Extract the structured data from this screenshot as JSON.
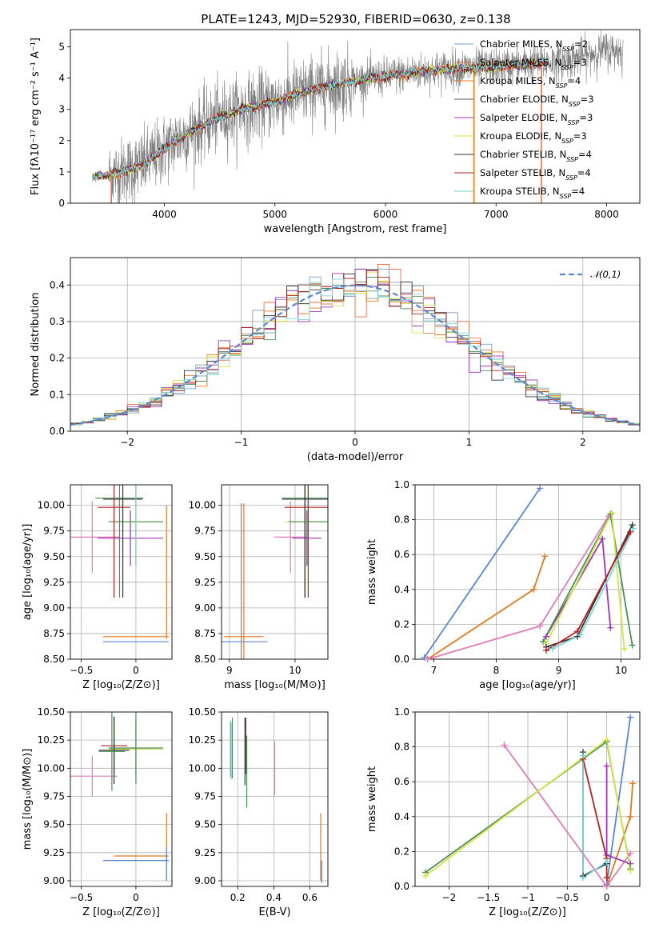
{
  "figure": {
    "title": "PLATE=1243, MJD=52930, FIBERID=0630, z=0.138"
  },
  "colors": {
    "observed": "#808080",
    "Chabrier MILES": "#7f9fc6",
    "Salpeter MILES": "#e8744d",
    "Kroupa MILES": "#e07b20",
    "Chabrier ELODIE": "#555555",
    "Salpeter ELODIE": "#9c35b8",
    "Kroupa ELODIE": "#d4e645",
    "Chabrier STELIB": "#333333",
    "Salpeter STELIB": "#b22222",
    "Kroupa STELIB": "#7fd6d6",
    "blue": "#5b86d6",
    "orange": "#e07b20",
    "pink": "#e07bb8",
    "purple": "#9c35b8",
    "green": "#4a8f5e",
    "lime": "#c8e64a",
    "darkred": "#8b1a1a",
    "darkgrey": "#444444",
    "cyan": "#7fd6d6",
    "normal_dashed": "#5b86d6"
  },
  "chart_data": [
    {
      "id": "spectrum",
      "type": "line",
      "title": "PLATE=1243, MJD=52930, FIBERID=0630, z=0.138",
      "xlabel": "wavelength [Angstrom, rest frame]",
      "ylabel": "Flux [fλ10⁻¹⁷ erg cm⁻² s⁻¹ A⁻¹]",
      "xlim": [
        3150,
        8300
      ],
      "ylim": [
        0,
        5.55
      ],
      "xticks": [
        4000,
        5000,
        6000,
        7000,
        8000
      ],
      "yticks": [
        0,
        1,
        2,
        3,
        4,
        5
      ],
      "grid": false,
      "legend_position": "top-right",
      "legend": [
        "Chabrier MILES, N_SSP=2",
        "Salpeter MILES, N_SSP=3",
        "Kroupa MILES, N_SSP=4",
        "Chabrier ELODIE, N_SSP=3",
        "Salpeter ELODIE, N_SSP=3",
        "Kroupa ELODIE, N_SSP=3",
        "Chabrier STELIB, N_SSP=4",
        "Salpeter STELIB, N_SSP=4",
        "Kroupa STELIB, N_SSP=4"
      ],
      "legend_display": [
        [
          "Chabrier MILES, N",
          "SSP",
          "=2"
        ],
        [
          "Salpeter MILES, N",
          "SSP",
          "=3"
        ],
        [
          "Kroupa MILES, N",
          "SSP",
          "=4"
        ],
        [
          "Chabrier ELODIE, N",
          "SSP",
          "=3"
        ],
        [
          "Salpeter ELODIE, N",
          "SSP",
          "=3"
        ],
        [
          "Kroupa ELODIE, N",
          "SSP",
          "=3"
        ],
        [
          "Chabrier STELIB, N",
          "SSP",
          "=4"
        ],
        [
          "Salpeter STELIB, N",
          "SSP",
          "=4"
        ],
        [
          "Kroupa STELIB, N",
          "SSP",
          "=4"
        ]
      ],
      "continuum": [
        [
          3350,
          0.85
        ],
        [
          3500,
          0.9
        ],
        [
          3650,
          1.05
        ],
        [
          3800,
          1.2
        ],
        [
          3950,
          1.6
        ],
        [
          4100,
          2.0
        ],
        [
          4300,
          2.4
        ],
        [
          4500,
          2.75
        ],
        [
          4700,
          3.0
        ],
        [
          4900,
          3.15
        ],
        [
          5100,
          3.35
        ],
        [
          5300,
          3.6
        ],
        [
          5500,
          3.75
        ],
        [
          5700,
          3.9
        ],
        [
          6000,
          4.05
        ],
        [
          6300,
          4.2
        ],
        [
          6600,
          4.3
        ],
        [
          7000,
          4.35
        ],
        [
          7300,
          4.45
        ],
        [
          7600,
          4.55
        ],
        [
          7800,
          4.7
        ],
        [
          8000,
          4.9
        ],
        [
          8150,
          4.85
        ]
      ],
      "observed_range": [
        3500,
        8150
      ],
      "models_range": [
        3350,
        7450
      ],
      "spikes": [
        {
          "x": 3520,
          "series": "Salpeter MILES"
        },
        {
          "x": 6800,
          "series": "Kroupa MILES"
        },
        {
          "x": 7410,
          "series": "Salpeter MILES"
        }
      ]
    },
    {
      "id": "residuals",
      "type": "histogram",
      "xlabel": "(data-model)/error",
      "ylabel": "Normed distribution",
      "xlim": [
        -2.5,
        2.5
      ],
      "ylim": [
        0,
        0.475
      ],
      "xticks": [
        -2,
        -1,
        0,
        1,
        2
      ],
      "yticks": [
        0.0,
        0.1,
        0.2,
        0.3,
        0.4
      ],
      "grid": true,
      "legend_position": "top-right",
      "legend": [
        "𝒩(0,1)"
      ],
      "bins": [
        -2.5,
        2.5,
        50
      ],
      "series_colors": [
        "#7f9fc6",
        "#e8744d",
        "#e07b20",
        "#4a8f5e",
        "#9c35b8",
        "#d4e645",
        "#333333",
        "#b22222",
        "#7fd6d6"
      ]
    },
    {
      "id": "age-vs-Z",
      "type": "errorbar",
      "xlabel": "Z [log₁₀(Z/Z⊙)]",
      "ylabel": "age  [log₁₀(age/yr)]",
      "xlim": [
        -0.6,
        0.33
      ],
      "ylim": [
        8.5,
        10.2
      ],
      "xticks": [
        -0.5,
        0.0
      ],
      "yticks": [
        8.5,
        8.75,
        9.0,
        9.25,
        9.5,
        9.75,
        10.0
      ],
      "grid": true,
      "points": [
        {
          "x": 0.0,
          "xerr": 0.3,
          "y": 8.67,
          "yerr": 0.0,
          "color": "#5b86d6"
        },
        {
          "x": 0.0,
          "xerr": 0.3,
          "y": 8.72,
          "yerr": 0.0,
          "color": "#e07b20"
        },
        {
          "x": 0.28,
          "xerr": 0.0,
          "y": 9.35,
          "yerr": 0.65,
          "color": "#e07b20"
        },
        {
          "x": -0.4,
          "xerr": 0.25,
          "y": 9.69,
          "yerr": 0.35,
          "color": "#e07bb8"
        },
        {
          "x": -0.05,
          "xerr": 0.3,
          "y": 9.68,
          "yerr": 0.27,
          "color": "#9c35b8"
        },
        {
          "x": 0.0,
          "xerr": 0.25,
          "y": 9.84,
          "yerr": 0.42,
          "color": "#d4e645"
        },
        {
          "x": 0.0,
          "xerr": 0.25,
          "y": 9.84,
          "yerr": 0.42,
          "color": "#4a8f5e"
        },
        {
          "x": -0.2,
          "xerr": 0.15,
          "y": 9.98,
          "yerr": 0.88,
          "color": "#b22222"
        },
        {
          "x": -0.15,
          "xerr": 0.22,
          "y": 10.07,
          "yerr": 0.97,
          "color": "#4a8f5e"
        },
        {
          "x": -0.12,
          "xerr": 0.18,
          "y": 10.06,
          "yerr": 0.96,
          "color": "#333333"
        },
        {
          "x": 0.0,
          "xerr": 0.0,
          "y": 10.0,
          "yerr": 0.6,
          "color": "#7fd6d6"
        }
      ]
    },
    {
      "id": "age-vs-mass",
      "type": "errorbar",
      "xlabel": "mass [log₁₀(M/M⊙)]",
      "ylabel": "",
      "xlim": [
        8.88,
        10.5
      ],
      "ylim": [
        8.5,
        10.2
      ],
      "xticks": [
        9,
        10
      ],
      "yticks": [
        8.5,
        8.75,
        9.0,
        9.25,
        9.5,
        9.75,
        10.0
      ],
      "grid": true,
      "points": [
        {
          "x": 9.18,
          "xerr": 0.4,
          "y": 8.67,
          "yerr": 1.35,
          "color": "#5b86d6"
        },
        {
          "x": 9.22,
          "xerr": 0.3,
          "y": 8.72,
          "yerr": 1.3,
          "color": "#e07b20"
        },
        {
          "x": 9.93,
          "xerr": 0.25,
          "y": 9.69,
          "yerr": 0.35,
          "color": "#e07bb8"
        },
        {
          "x": 10.18,
          "xerr": 0.22,
          "y": 9.68,
          "yerr": 0.27,
          "color": "#9c35b8"
        },
        {
          "x": 10.15,
          "xerr": 0.3,
          "y": 9.84,
          "yerr": 0.42,
          "color": "#d4e645"
        },
        {
          "x": 10.2,
          "xerr": 0.3,
          "y": 9.84,
          "yerr": 0.42,
          "color": "#4a8f5e"
        },
        {
          "x": 10.2,
          "xerr": 0.36,
          "y": 9.98,
          "yerr": 0.88,
          "color": "#b22222"
        },
        {
          "x": 10.15,
          "xerr": 0.35,
          "y": 10.07,
          "yerr": 0.97,
          "color": "#4a8f5e"
        },
        {
          "x": 10.15,
          "xerr": 0.35,
          "y": 10.06,
          "yerr": 0.96,
          "color": "#333333"
        }
      ]
    },
    {
      "id": "weight-vs-age",
      "type": "line",
      "xlabel": "age  [log₁₀(age/yr)]",
      "ylabel": "mass weight",
      "xlim": [
        6.7,
        10.3
      ],
      "ylim": [
        0.0,
        1.0
      ],
      "xticks": [
        7,
        8,
        9,
        10
      ],
      "yticks": [
        0.0,
        0.2,
        0.4,
        0.6,
        0.8,
        1.0
      ],
      "grid": true,
      "series": [
        {
          "color": "#5b86d6",
          "x": [
            6.85,
            8.7
          ],
          "y": [
            0.01,
            0.98
          ]
        },
        {
          "color": "#e07b20",
          "x": [
            6.9,
            8.6,
            8.78
          ],
          "y": [
            0.0,
            0.4,
            0.59
          ]
        },
        {
          "color": "#e07bb8",
          "x": [
            6.9,
            8.7,
            9.8
          ],
          "y": [
            0.0,
            0.19,
            0.82
          ]
        },
        {
          "color": "#9c35b8",
          "x": [
            8.8,
            9.7,
            9.83
          ],
          "y": [
            0.13,
            0.69,
            0.18
          ]
        },
        {
          "color": "#4a8f5e",
          "x": [
            8.75,
            9.83,
            10.18
          ],
          "y": [
            0.1,
            0.83,
            0.08
          ]
        },
        {
          "color": "#d4e645",
          "x": [
            8.8,
            9.85,
            10.05
          ],
          "y": [
            0.09,
            0.84,
            0.06
          ]
        },
        {
          "color": "#333333",
          "x": [
            8.8,
            9.3,
            10.18
          ],
          "y": [
            0.07,
            0.13,
            0.77
          ]
        },
        {
          "color": "#b22222",
          "x": [
            8.8,
            9.3,
            10.15
          ],
          "y": [
            0.05,
            0.16,
            0.73
          ]
        },
        {
          "color": "#7fd6d6",
          "x": [
            8.9,
            9.35,
            10.2
          ],
          "y": [
            0.06,
            0.14,
            0.75
          ]
        }
      ]
    },
    {
      "id": "mass-vs-Z",
      "type": "errorbar",
      "xlabel": "Z [log₁₀(Z/Z⊙)]",
      "ylabel": "mass [log₁₀(M/M⊙)]",
      "xlim": [
        -0.6,
        0.33
      ],
      "ylim": [
        8.95,
        10.5
      ],
      "xticks": [
        -0.5,
        0.0
      ],
      "yticks": [
        9.0,
        9.25,
        9.5,
        9.75,
        10.0,
        10.25,
        10.5
      ],
      "grid": true,
      "points": [
        {
          "x": 0.0,
          "xerr": 0.3,
          "y": 9.18,
          "yerr": 0.0,
          "color": "#5b86d6"
        },
        {
          "x": 0.05,
          "xerr": 0.25,
          "y": 9.22,
          "yerr": 0.0,
          "color": "#e07b20"
        },
        {
          "x": 0.28,
          "xerr": 0.0,
          "y": 9.3,
          "yerr": 0.3,
          "color": "#e07b20"
        },
        {
          "x": 0.28,
          "xerr": 0.0,
          "y": 9.15,
          "yerr": 0.15,
          "color": "#5b86d6"
        },
        {
          "x": -0.4,
          "xerr": 0.23,
          "y": 9.93,
          "yerr": 0.18,
          "color": "#e07bb8"
        },
        {
          "x": 0.0,
          "xerr": 0.2,
          "y": 10.17,
          "yerr": 0.25,
          "color": "#9c35b8"
        },
        {
          "x": 0.0,
          "xerr": 0.25,
          "y": 10.17,
          "yerr": 0.3,
          "color": "#d4e645"
        },
        {
          "x": 0.0,
          "xerr": 0.25,
          "y": 10.18,
          "yerr": 0.32,
          "color": "#4a8f5e"
        },
        {
          "x": -0.2,
          "xerr": 0.12,
          "y": 10.2,
          "yerr": 0.25,
          "color": "#b22222"
        },
        {
          "x": -0.2,
          "xerr": 0.14,
          "y": 10.16,
          "yerr": 0.3,
          "color": "#333333"
        },
        {
          "x": -0.22,
          "xerr": 0.12,
          "y": 10.15,
          "yerr": 0.35,
          "color": "#4a8f5e"
        }
      ]
    },
    {
      "id": "mass-vs-EBV",
      "type": "errorbar",
      "xlabel": "E(B-V)",
      "ylabel": "",
      "xlim": [
        0.11,
        0.7
      ],
      "ylim": [
        8.95,
        10.5
      ],
      "xticks": [
        0.2,
        0.4,
        0.6
      ],
      "yticks": [
        9.0,
        9.25,
        9.5,
        9.75,
        10.0,
        10.25,
        10.5
      ],
      "grid": true,
      "points": [
        {
          "x": 0.16,
          "xerr": 0.0,
          "y": 10.17,
          "yerr": 0.25,
          "color": "#5b86d6"
        },
        {
          "x": 0.165,
          "xerr": 0.0,
          "y": 10.15,
          "yerr": 0.25,
          "color": "#d4e645"
        },
        {
          "x": 0.17,
          "xerr": 0.0,
          "y": 10.18,
          "yerr": 0.27,
          "color": "#4a8f5e"
        },
        {
          "x": 0.24,
          "xerr": 0.0,
          "y": 10.15,
          "yerr": 0.3,
          "color": "#333333"
        },
        {
          "x": 0.245,
          "xerr": 0.0,
          "y": 10.2,
          "yerr": 0.25,
          "color": "#b22222"
        },
        {
          "x": 0.25,
          "xerr": 0.0,
          "y": 9.97,
          "yerr": 0.32,
          "color": "#4a8f5e"
        },
        {
          "x": 0.405,
          "xerr": 0.0,
          "y": 10.0,
          "yerr": 0.24,
          "color": "#e07bb8"
        },
        {
          "x": 0.66,
          "xerr": 0.0,
          "y": 9.3,
          "yerr": 0.3,
          "color": "#e07b20"
        },
        {
          "x": 0.665,
          "xerr": 0.0,
          "y": 9.08,
          "yerr": 0.1,
          "color": "#5b86d6"
        }
      ]
    },
    {
      "id": "weight-vs-Z",
      "type": "line",
      "xlabel": "Z [log₁₀(Z/Z⊙)]",
      "ylabel": "mass weight",
      "xlim": [
        -2.43,
        0.42
      ],
      "ylim": [
        0.0,
        1.0
      ],
      "xticks": [
        -2.0,
        -1.5,
        -1.0,
        -0.5,
        0.0
      ],
      "yticks": [
        0.0,
        0.2,
        0.4,
        0.6,
        0.8,
        1.0
      ],
      "grid": true,
      "series": [
        {
          "color": "#5b86d6",
          "x": [
            0.0,
            0.3
          ],
          "y": [
            0.01,
            0.97
          ]
        },
        {
          "color": "#e07b20",
          "x": [
            0.0,
            0.3,
            0.33
          ],
          "y": [
            0.0,
            0.4,
            0.59
          ]
        },
        {
          "color": "#e07bb8",
          "x": [
            -1.3,
            0.0,
            0.3
          ],
          "y": [
            0.81,
            0.0,
            0.19
          ]
        },
        {
          "color": "#9c35b8",
          "x": [
            0.0,
            0.0,
            0.3
          ],
          "y": [
            0.69,
            0.18,
            0.13
          ]
        },
        {
          "color": "#4a8f5e",
          "x": [
            -2.3,
            0.0,
            0.3
          ],
          "y": [
            0.08,
            0.83,
            0.1
          ]
        },
        {
          "color": "#d4e645",
          "x": [
            -2.3,
            0.0,
            0.3
          ],
          "y": [
            0.06,
            0.84,
            0.09
          ]
        },
        {
          "color": "#333333",
          "x": [
            -0.3,
            -0.3,
            0.0
          ],
          "y": [
            0.77,
            0.06,
            0.13
          ]
        },
        {
          "color": "#b22222",
          "x": [
            -0.3,
            0.0,
            0.0
          ],
          "y": [
            0.73,
            0.16,
            0.05
          ]
        },
        {
          "color": "#7fd6d6",
          "x": [
            -0.3,
            -0.3,
            0.0
          ],
          "y": [
            0.75,
            0.05,
            0.14
          ]
        }
      ]
    }
  ]
}
